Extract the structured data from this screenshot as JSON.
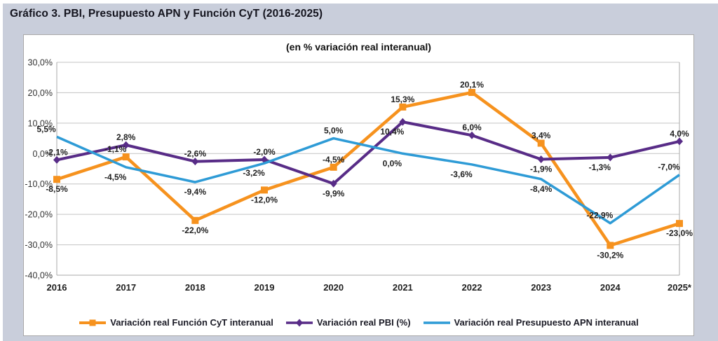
{
  "figure": {
    "title": "Gráfico 3. PBI, Presupuesto APN y Función CyT (2016-2025)"
  },
  "chart_data": {
    "type": "line",
    "title": "Gráfico 3. PBI, Presupuesto APN y Función CyT (2016-2025)",
    "subtitle": "(en % variación real interanual)",
    "categories": [
      "2016",
      "2017",
      "2018",
      "2019",
      "2020",
      "2021",
      "2022",
      "2023",
      "2024",
      "2025*"
    ],
    "y_axis": {
      "min": -40,
      "max": 30,
      "step": 10,
      "tick_labels": [
        "30,0%",
        "20,0%",
        "10,0%",
        "0,0%",
        "-10,0%",
        "-20,0%",
        "-30,0%",
        "-40,0%"
      ]
    },
    "grid": true,
    "legend_position": "bottom",
    "colors": {
      "funcion_cyt": "#F6921E",
      "pbi": "#582C87",
      "presupuesto_apn": "#2E9BD6"
    },
    "series": [
      {
        "name": "Variación real Función CyT interanual",
        "color": "#F6921E",
        "marker": "square",
        "line_width": 4.5,
        "values": [
          -8.5,
          -1.1,
          -22.0,
          -12.0,
          -4.5,
          15.3,
          20.1,
          3.4,
          -30.2,
          -23.0
        ],
        "labels": [
          "-8,5%",
          "-1,1%",
          "-22,0%",
          "-12,0%",
          "-4,5%",
          "15,3%",
          "20,1%",
          "3,4%",
          "-30,2%",
          "-23,0%"
        ],
        "label_pos": [
          "below",
          "above-left",
          "below",
          "below",
          "above",
          "above",
          "above",
          "above",
          "below",
          "below"
        ]
      },
      {
        "name": "Variación real PBI (%)",
        "color": "#582C87",
        "marker": "diamond",
        "line_width": 4,
        "values": [
          -2.1,
          2.8,
          -2.6,
          -2.0,
          -9.9,
          10.4,
          6.0,
          -1.9,
          -1.3,
          4.0
        ],
        "labels": [
          "-2,1%",
          "2,8%",
          "-2,6%",
          "-2,0%",
          "-9,9%",
          "10,4%",
          "6,0%",
          "-1,9%",
          "-1,3%",
          "4,0%"
        ],
        "label_pos": [
          "above",
          "above",
          "above",
          "above",
          "below",
          "below-left",
          "above",
          "below",
          "below-left",
          "above"
        ]
      },
      {
        "name": "Variación real Presupuesto APN interanual",
        "color": "#2E9BD6",
        "marker": "none",
        "line_width": 3.5,
        "values": [
          5.5,
          -4.5,
          -9.4,
          -3.2,
          5.0,
          0.0,
          -3.6,
          -8.4,
          -22.9,
          -7.0
        ],
        "labels": [
          "5,5%",
          "-4,5%",
          "-9,4%",
          "-3,2%",
          "5,0%",
          "0,0%",
          "-3,6%",
          "-8,4%",
          "-22,9%",
          "-7,0%"
        ],
        "label_pos": [
          "above-left",
          "below-left",
          "below",
          "below-left",
          "above",
          "below-left",
          "below-left",
          "below",
          "above-left",
          "above-left"
        ]
      }
    ]
  }
}
